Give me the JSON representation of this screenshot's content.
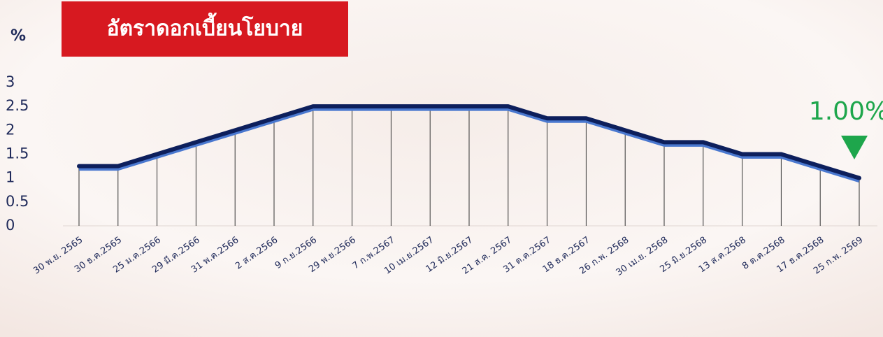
{
  "chart_data": {
    "type": "line",
    "title": "อัตราดอกเบี้ยนโยบาย",
    "y_label": "%",
    "annotation": "1.00%",
    "categories": [
      "30 พ.ย. 2565",
      "30 ธ.ค.2565",
      "25 ม.ค.2566",
      "29 มี.ค.2566",
      "31 พ.ค.2566",
      "2 ส.ค.2566",
      "9 ก.ย.2566",
      "29 พ.ย.2566",
      "7 ก.พ.2567",
      "10 เม.ย.2567",
      "12 มิ.ย.2567",
      "21 ส.ค. 2567",
      "31 ต.ค.2567",
      "18 ธ.ค.2567",
      "26 ก.พ. 2568",
      "30 เม.ย. 2568",
      "25 มิ.ย.2568",
      "13 ส.ค.2568",
      "8 ต.ค.2568",
      "17 ธ.ค.2568",
      "25 ก.พ. 2569"
    ],
    "values": [
      1.25,
      1.25,
      1.5,
      1.75,
      2.0,
      2.25,
      2.5,
      2.5,
      2.5,
      2.5,
      2.5,
      2.5,
      2.25,
      2.25,
      2.0,
      1.75,
      1.75,
      1.5,
      1.5,
      1.25,
      1.0
    ],
    "color": "#0d1f5c",
    "shadow_color": "#4a78cf",
    "annotation_color": "#1ea64c",
    "title_color": "#d71920",
    "ylim": [
      0,
      3
    ],
    "yticks": [
      0,
      0.5,
      1,
      1.5,
      2,
      2.5,
      3
    ]
  }
}
